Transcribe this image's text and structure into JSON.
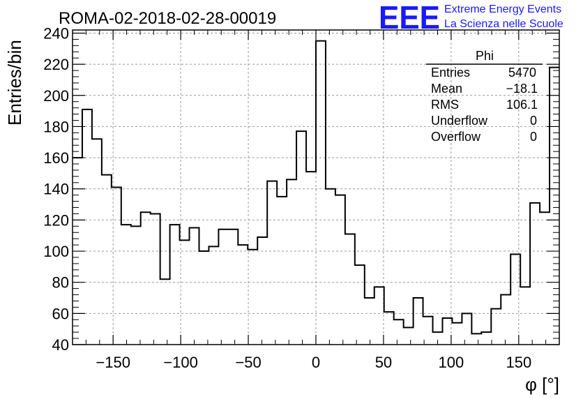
{
  "header": {
    "title": "ROMA-02-2018-02-28-00019",
    "logo_text": "EEE",
    "logo_line1": "Extreme Energy Events",
    "logo_line2": "La Scienza nelle Scuole"
  },
  "stats": {
    "title": "Phi",
    "rows": [
      {
        "label": "Entries",
        "value": "5470"
      },
      {
        "label": "Mean",
        "value": "−18.1"
      },
      {
        "label": "RMS",
        "value": "106.1"
      },
      {
        "label": "Underflow",
        "value": "0"
      },
      {
        "label": "Overflow",
        "value": "0"
      }
    ]
  },
  "colors": {
    "histogram": "#000000",
    "grid": "#999999",
    "logo": "#1a1aff"
  },
  "chart_data": {
    "type": "bar",
    "style": "step-histogram",
    "xlabel": "φ [°]",
    "ylabel": "Entries/bin",
    "xlim": [
      -180,
      180
    ],
    "ylim": [
      40,
      242
    ],
    "grid": true,
    "bin_width": 7.2,
    "xticks": [
      -150,
      -100,
      -50,
      0,
      50,
      100,
      150
    ],
    "xtick_labels": [
      "−150",
      "−100",
      "−50",
      "0",
      "50",
      "100",
      "150"
    ],
    "yticks": [
      40,
      60,
      80,
      100,
      120,
      140,
      160,
      180,
      200,
      220,
      240
    ],
    "ytick_labels": [
      "40",
      "60",
      "80",
      "100",
      "120",
      "140",
      "160",
      "180",
      "200",
      "220",
      "240"
    ],
    "values": [
      160,
      191,
      172,
      149,
      141,
      117,
      116,
      125,
      124,
      82,
      117,
      107,
      115,
      100,
      103,
      114,
      114,
      104,
      101,
      109,
      145,
      135,
      146,
      177,
      151,
      235,
      140,
      136,
      111,
      91,
      70,
      77,
      61,
      56,
      51,
      70,
      58,
      48,
      57,
      54,
      60,
      47,
      48,
      63,
      72,
      98,
      77,
      131,
      125,
      218
    ]
  }
}
